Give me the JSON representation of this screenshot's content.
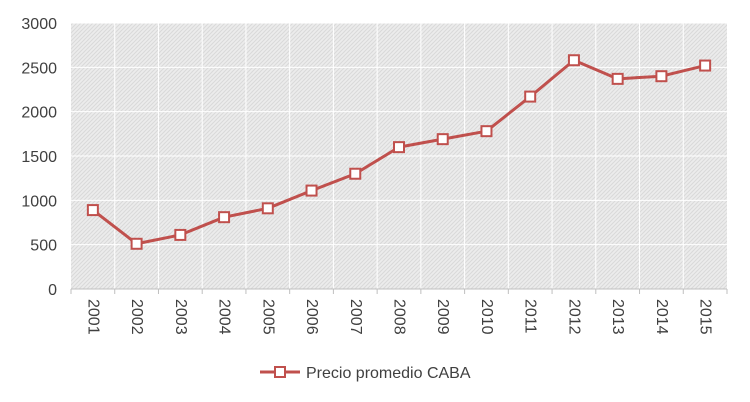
{
  "chart_data": {
    "type": "line",
    "title": "",
    "xlabel": "",
    "ylabel": "",
    "x": [
      "2001",
      "2002",
      "2003",
      "2004",
      "2005",
      "2006",
      "2007",
      "2008",
      "2009",
      "2010",
      "2011",
      "2012",
      "2013",
      "2014",
      "2015"
    ],
    "series": [
      {
        "name": "Precio promedio CABA",
        "values": [
          890,
          510,
          610,
          810,
          910,
          1110,
          1300,
          1600,
          1690,
          1780,
          2170,
          2580,
          2370,
          2400,
          2520
        ]
      }
    ],
    "ylim": [
      0,
      3000
    ],
    "yticks": [
      0,
      500,
      1000,
      1500,
      2000,
      2500,
      3000
    ],
    "grid": true,
    "legend_position": "bottom",
    "colors": {
      "series": "#C0504D",
      "marker_fill": "#ffffff",
      "plot_background": "#ececec",
      "hatch": "#d9d9d9",
      "grid": "#ffffff",
      "text": "#404040"
    }
  }
}
